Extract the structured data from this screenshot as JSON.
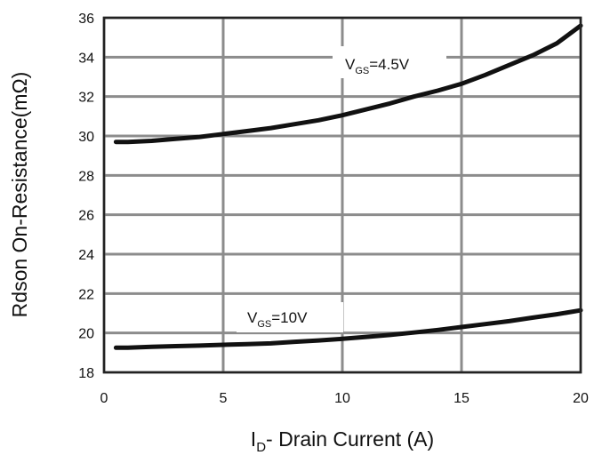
{
  "chart_data": {
    "type": "line",
    "xlabel": {
      "main": "I",
      "sub": "D",
      "rest": "- Drain Current (A)"
    },
    "ylabel": "Rdson On-Resistance(mΩ)",
    "xlim": [
      0,
      20
    ],
    "ylim": [
      18,
      36
    ],
    "xticks": [
      "0",
      "5",
      "10",
      "15",
      "20"
    ],
    "yticks": [
      "18",
      "20",
      "22",
      "24",
      "26",
      "28",
      "30",
      "32",
      "34",
      "36"
    ],
    "grid": true,
    "series": [
      {
        "label": {
          "main": "V",
          "sub": "GS",
          "rest": "=4.5V"
        },
        "x": [
          0.5,
          1,
          2,
          3,
          4,
          5,
          6,
          7,
          8,
          9,
          10,
          11,
          12,
          13,
          14,
          15,
          16,
          17,
          18,
          19,
          20
        ],
        "y": [
          29.7,
          29.7,
          29.75,
          29.85,
          29.95,
          30.1,
          30.25,
          30.4,
          30.6,
          30.8,
          31.05,
          31.35,
          31.65,
          32.0,
          32.3,
          32.65,
          33.1,
          33.6,
          34.1,
          34.7,
          35.6
        ]
      },
      {
        "label": {
          "main": "V",
          "sub": "GS",
          "rest": "=10V"
        },
        "x": [
          0.5,
          1,
          2,
          3,
          4,
          5,
          6,
          7,
          8,
          9,
          10,
          11,
          12,
          13,
          14,
          15,
          16,
          17,
          18,
          19,
          20
        ],
        "y": [
          19.25,
          19.25,
          19.3,
          19.33,
          19.36,
          19.4,
          19.43,
          19.47,
          19.55,
          19.62,
          19.7,
          19.8,
          19.9,
          20.02,
          20.15,
          20.3,
          20.45,
          20.6,
          20.78,
          20.95,
          21.15
        ]
      }
    ]
  }
}
